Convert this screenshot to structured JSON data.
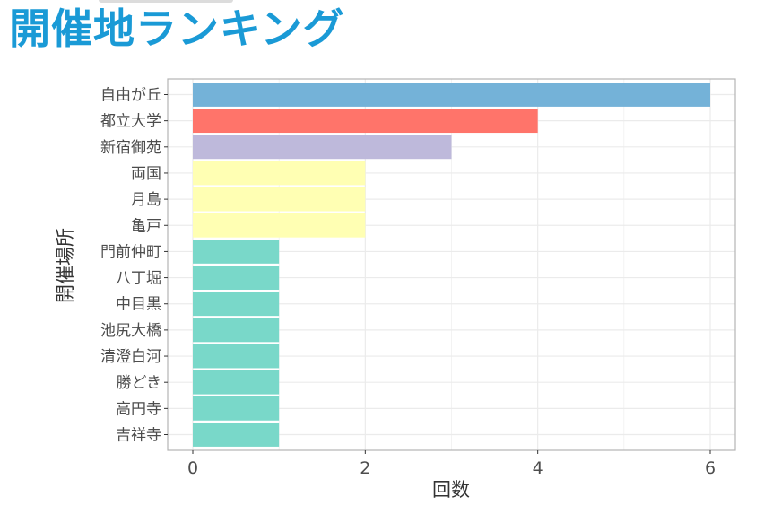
{
  "page": {
    "title": "開催地ランキング"
  },
  "chart_data": {
    "type": "bar",
    "orientation": "horizontal",
    "title": "",
    "xlabel": "回数",
    "ylabel": "開催場所",
    "xlim": [
      0,
      6
    ],
    "xticks": [
      0,
      2,
      4,
      6
    ],
    "grid": true,
    "legend": "none",
    "categories": [
      "自由が丘",
      "都立大学",
      "新宿御苑",
      "両国",
      "月島",
      "亀戸",
      "門前仲町",
      "八丁堀",
      "中目黒",
      "池尻大橋",
      "清澄白河",
      "勝どき",
      "高円寺",
      "吉祥寺"
    ],
    "values": [
      6,
      4,
      3,
      2,
      2,
      2,
      1,
      1,
      1,
      1,
      1,
      1,
      1,
      1
    ],
    "colors": [
      "#74b2d8",
      "#ff746a",
      "#beb9db",
      "#ffffb3",
      "#ffffb3",
      "#ffffb3",
      "#79d8c9",
      "#79d8c9",
      "#79d8c9",
      "#79d8c9",
      "#79d8c9",
      "#79d8c9",
      "#79d8c9",
      "#79d8c9"
    ],
    "panel_border_color": "#b3b3b3",
    "grid_color": "#ebebeb"
  }
}
